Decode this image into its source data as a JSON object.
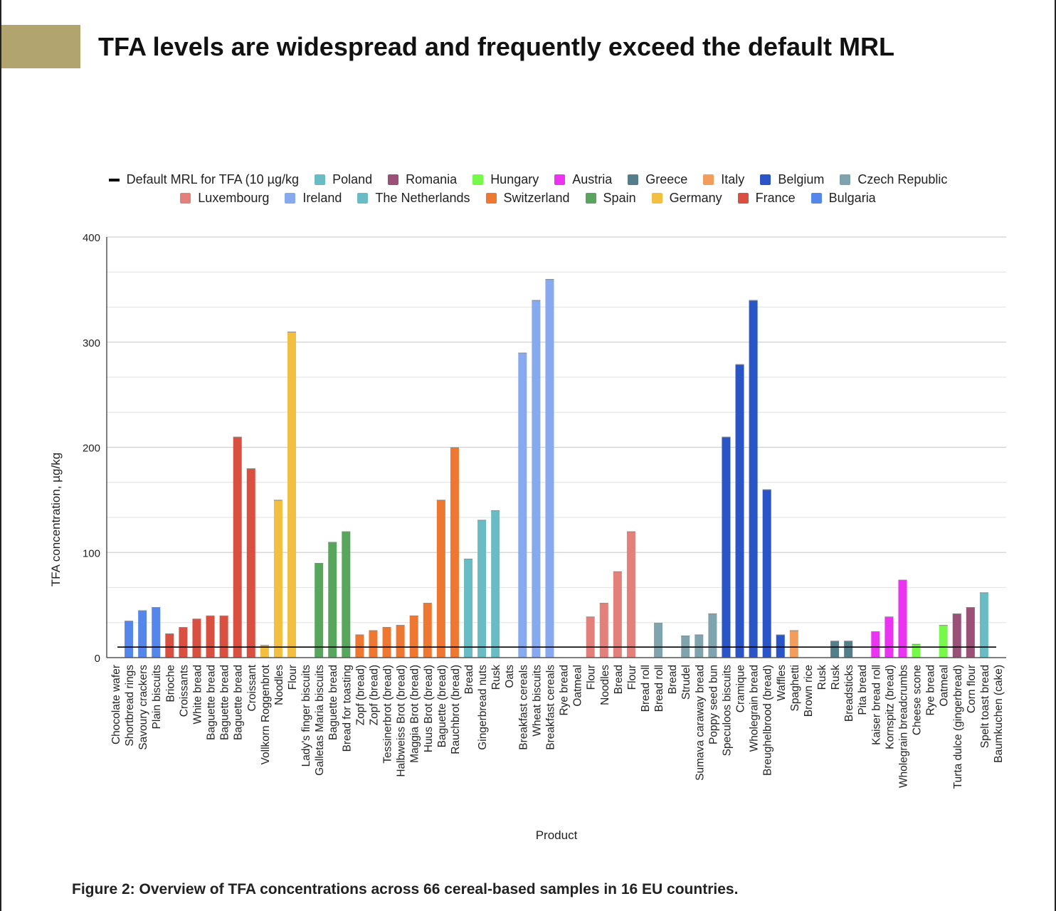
{
  "header": {
    "title": "TFA levels are widespread and frequently exceed the default MRL",
    "accent_color": "#b2a46f"
  },
  "caption": "Figure 2: Overview of TFA concentrations across 66 cereal-based samples in 16 EU countries.",
  "chart_data": {
    "type": "bar",
    "title": "",
    "xlabel": "Product",
    "ylabel": "TFA concentration, µg/kg",
    "ylim": [
      0,
      400
    ],
    "yticks": [
      0,
      100,
      200,
      300,
      400
    ],
    "grid": true,
    "legend_placement": "top",
    "reference_line": {
      "name": "Default MRL for TFA (10 µg/kg",
      "value": 10,
      "color": "#000000"
    },
    "legend": [
      {
        "name": "Poland",
        "color": "#6abcc4"
      },
      {
        "name": "Romania",
        "color": "#9a5077"
      },
      {
        "name": "Hungary",
        "color": "#76f94a"
      },
      {
        "name": "Austria",
        "color": "#eb34f2"
      },
      {
        "name": "Greece",
        "color": "#537e8a"
      },
      {
        "name": "Italy",
        "color": "#f29d5c"
      },
      {
        "name": "Belgium",
        "color": "#2a55c6"
      },
      {
        "name": "Czech Republic",
        "color": "#80a4ad"
      },
      {
        "name": "Luxembourg",
        "color": "#e3807a"
      },
      {
        "name": "Ireland",
        "color": "#86a9f0"
      },
      {
        "name": "The Netherlands",
        "color": "#6abcc4"
      },
      {
        "name": "Switzerland",
        "color": "#ee7731"
      },
      {
        "name": "Spain",
        "color": "#58a55d"
      },
      {
        "name": "Germany",
        "color": "#f2bf40"
      },
      {
        "name": "France",
        "color": "#d95040"
      },
      {
        "name": "Bulgaria",
        "color": "#5586ec"
      }
    ],
    "categories": [
      "Chocolate wafer",
      "Shortbread rings",
      "Savoury crackers",
      "Plain biscuits",
      "Brioche",
      "Croissants",
      "White bread",
      "Baguette bread",
      "Baguette bread",
      "Baguette bread",
      "Croissant",
      "Vollkorn Roggenbrot",
      "Noodles",
      "Flour",
      "Lady's finger biscuits",
      "Galletas Maria biscuits",
      "Baguette bread",
      "Bread for toasting",
      "Zopf (bread)",
      "Zopf (bread)",
      "Tessinerbrot (bread)",
      "Halbweiss Brot (bread)",
      "Maggia Brot (bread)",
      "Huus Brot (bread)",
      "Baguette (bread)",
      "Rauchbrot (bread)",
      "Bread",
      "Gingerbread nuts",
      "Rusk",
      "Oats",
      "Breakfast cereals",
      "Wheat biscuits",
      "Breakfast cereals",
      "Rye bread",
      "Oatmeal",
      "Flour",
      "Noodles",
      "Bread",
      "Flour",
      "Bread roll",
      "Bread roll",
      "Bread",
      "Strudel",
      "Sumava caraway bread",
      "Poppy seed bun",
      "Speculoos biscuits",
      "Cramique",
      "Wholegrain bread",
      "Breughelbrood (bread)",
      "Waffles",
      "Spaghetti",
      "Brown rice",
      "Rusk",
      "Rusk",
      "Breadsticks",
      "Pita bread",
      "Kaiser bread roll",
      "Kornspitz (bread)",
      "Wholegrain breadcrumbs",
      "Cheese scone",
      "Rye bread",
      "Oatmeal",
      "Turta dulce (gingerbread)",
      "Corn flour",
      "Spelt toast bread",
      "Baumkuchen (cake)"
    ],
    "values": [
      0,
      35,
      45,
      48,
      23,
      29,
      37,
      40,
      40,
      210,
      180,
      12,
      150,
      310,
      0,
      90,
      110,
      120,
      22,
      26,
      29,
      31,
      40,
      52,
      150,
      200,
      94,
      131,
      140,
      0,
      290,
      340,
      360,
      0,
      0,
      39,
      52,
      82,
      120,
      0,
      33,
      0,
      21,
      22,
      42,
      210,
      279,
      340,
      160,
      22,
      26,
      0,
      0,
      16,
      16,
      0,
      25,
      39,
      74,
      13,
      0,
      31,
      42,
      48,
      62,
      0
    ],
    "countries": [
      "Bulgaria",
      "Bulgaria",
      "Bulgaria",
      "Bulgaria",
      "France",
      "France",
      "France",
      "France",
      "France",
      "France",
      "France",
      "Germany",
      "Germany",
      "Germany",
      "Spain",
      "Spain",
      "Spain",
      "Spain",
      "Switzerland",
      "Switzerland",
      "Switzerland",
      "Switzerland",
      "Switzerland",
      "Switzerland",
      "Switzerland",
      "Switzerland",
      "The Netherlands",
      "The Netherlands",
      "The Netherlands",
      "Ireland",
      "Ireland",
      "Ireland",
      "Ireland",
      "Ireland",
      "Ireland",
      "Luxembourg",
      "Luxembourg",
      "Luxembourg",
      "Luxembourg",
      "Luxembourg",
      "Czech Republic",
      "Czech Republic",
      "Czech Republic",
      "Czech Republic",
      "Czech Republic",
      "Belgium",
      "Belgium",
      "Belgium",
      "Belgium",
      "Belgium",
      "Italy",
      "Italy",
      "Italy",
      "Greece",
      "Greece",
      "Greece",
      "Austria",
      "Austria",
      "Austria",
      "Hungary",
      "Hungary",
      "Hungary",
      "Romania",
      "Romania",
      "Poland",
      "Poland"
    ]
  }
}
